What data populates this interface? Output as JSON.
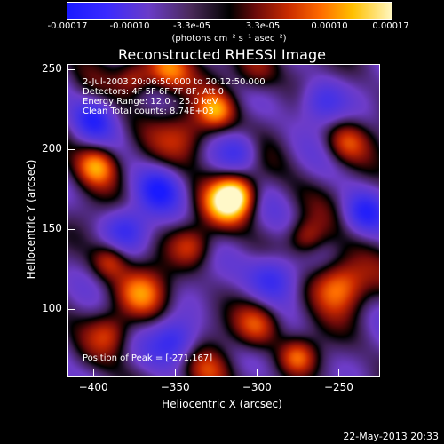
{
  "colorbar": {
    "ticks": [
      "-0.00017",
      "-0.00010",
      "-3.3e-05",
      "3.3e-05",
      "0.00010",
      "0.00017"
    ],
    "units": "(photons cm⁻² s⁻¹ asec⁻²)",
    "range": [
      -0.00017,
      0.00017
    ]
  },
  "chart_data": {
    "type": "heatmap",
    "title": "Reconstructed RHESSI Image",
    "xlabel": "Heliocentric X (arcsec)",
    "ylabel": "Heliocentric Y (arcsec)",
    "xlim": [
      -415,
      -225
    ],
    "ylim": [
      58,
      253
    ],
    "xticks": [
      -400,
      -350,
      -300,
      -250
    ],
    "yticks": [
      100,
      150,
      200,
      250
    ],
    "xtick_labels": [
      "−400",
      "−350",
      "−300",
      "−250"
    ],
    "ytick_labels": [
      "100",
      "150",
      "200",
      "250"
    ],
    "peak": [
      -271,
      167
    ],
    "annotations": {
      "time": "2-Jul-2003 20:06:50.000 to 20:12:50.000",
      "detectors": "Detectors: 4F 5F 6F 7F 8F, Att 0",
      "energy": "Energy Range: 12.0 - 25.0 keV",
      "method": "Clean     Total counts: 8.74E+03",
      "peak_label": "Position of Peak = [-271,167]"
    },
    "sources": [
      {
        "x": -313,
        "y": 172,
        "amp": 1.0,
        "w": 9
      },
      {
        "x": -250,
        "y": 115,
        "amp": 0.9,
        "w": 12
      },
      {
        "x": -398,
        "y": 190,
        "amp": 0.85,
        "w": 9
      },
      {
        "x": -355,
        "y": 250,
        "amp": 0.8,
        "w": 10
      },
      {
        "x": -325,
        "y": 225,
        "amp": 0.7,
        "w": 8
      },
      {
        "x": -320,
        "y": 165,
        "amp": 0.6,
        "w": 10
      },
      {
        "x": -342,
        "y": 210,
        "amp": 0.55,
        "w": 12
      },
      {
        "x": -370,
        "y": 110,
        "amp": 0.7,
        "w": 11
      },
      {
        "x": -300,
        "y": 90,
        "amp": 0.65,
        "w": 10
      },
      {
        "x": -390,
        "y": 130,
        "amp": 0.55,
        "w": 8
      },
      {
        "x": -275,
        "y": 70,
        "amp": 0.6,
        "w": 8
      },
      {
        "x": -330,
        "y": 60,
        "amp": 0.5,
        "w": 10
      },
      {
        "x": -245,
        "y": 205,
        "amp": 0.55,
        "w": 9
      },
      {
        "x": -375,
        "y": 245,
        "amp": 0.55,
        "w": 8
      },
      {
        "x": -300,
        "y": 250,
        "amp": 0.45,
        "w": 10
      },
      {
        "x": -390,
        "y": 85,
        "amp": 0.45,
        "w": 9
      },
      {
        "x": -340,
        "y": 140,
        "amp": 0.5,
        "w": 9
      },
      {
        "x": -270,
        "y": 145,
        "amp": 0.5,
        "w": 8
      },
      {
        "x": -360,
        "y": 175,
        "amp": -0.6,
        "w": 10
      },
      {
        "x": -400,
        "y": 220,
        "amp": -0.55,
        "w": 9
      },
      {
        "x": -350,
        "y": 80,
        "amp": -0.6,
        "w": 10
      },
      {
        "x": -290,
        "y": 120,
        "amp": -0.7,
        "w": 11
      },
      {
        "x": -260,
        "y": 230,
        "amp": -0.55,
        "w": 10
      },
      {
        "x": -310,
        "y": 200,
        "amp": -0.5,
        "w": 9
      },
      {
        "x": -235,
        "y": 160,
        "amp": -0.5,
        "w": 9
      },
      {
        "x": -380,
        "y": 150,
        "amp": -0.5,
        "w": 10
      }
    ]
  },
  "footer": {
    "timestamp": "22-May-2013 20:33"
  }
}
